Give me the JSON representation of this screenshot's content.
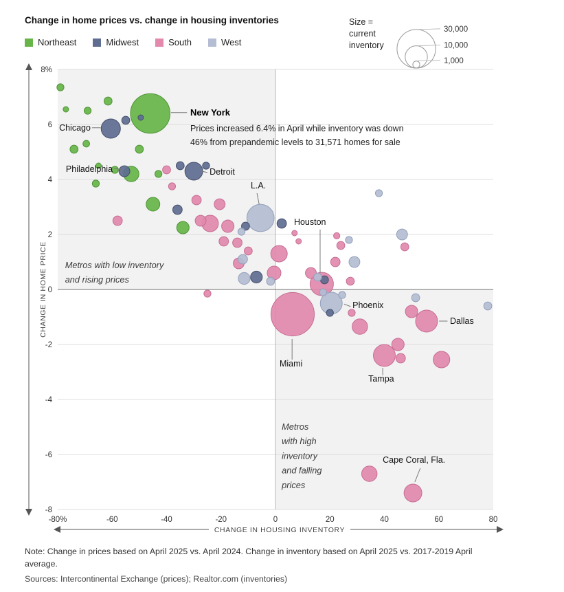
{
  "header": {
    "legend": [
      {
        "label": "Northeast",
        "color": "#67b549"
      },
      {
        "label": "Midwest",
        "color": "#5e6d90"
      },
      {
        "label": "South",
        "color": "#e289ad"
      },
      {
        "label": "West",
        "color": "#b4bdd3"
      }
    ],
    "size_legend": {
      "label_lines": [
        "Size =",
        "current",
        "inventory"
      ],
      "items": [
        {
          "value": 30000,
          "label": "30,000"
        },
        {
          "value": 10000,
          "label": "10,000"
        },
        {
          "value": 1000,
          "label": "1,000"
        }
      ]
    }
  },
  "chart_data": {
    "type": "scatter",
    "title": "Change in home prices vs. change in housing inventories",
    "x_label": "CHANGE IN HOUSING INVENTORY",
    "y_label": "CHANGE IN HOME PRICE",
    "x_range": [
      -80,
      80
    ],
    "y_range": [
      -8,
      8
    ],
    "x_ticks": [
      {
        "v": -80,
        "label": "-80%"
      },
      {
        "v": -60,
        "label": "-60"
      },
      {
        "v": -40,
        "label": "-40"
      },
      {
        "v": -20,
        "label": "-20"
      },
      {
        "v": 0,
        "label": "0"
      },
      {
        "v": 20,
        "label": "20"
      },
      {
        "v": 40,
        "label": "40"
      },
      {
        "v": 60,
        "label": "60"
      },
      {
        "v": 80,
        "label": "80"
      }
    ],
    "y_ticks": [
      {
        "v": 8,
        "label": "8%"
      },
      {
        "v": 6,
        "label": "6"
      },
      {
        "v": 4,
        "label": "4"
      },
      {
        "v": 2,
        "label": "2"
      },
      {
        "v": 0,
        "label": "0"
      },
      {
        "v": -2,
        "label": "-2"
      },
      {
        "v": -4,
        "label": "-4"
      },
      {
        "v": -6,
        "label": "-6"
      },
      {
        "v": -8,
        "label": "-8"
      }
    ],
    "size_note": "bubble area proportional to current inventory; r_px = 0.162*sqrt(inventory)",
    "region_colors": {
      "Northeast": {
        "fill": "#67b549",
        "stroke": "#4d9334"
      },
      "Midwest": {
        "fill": "#5e6d90",
        "stroke": "#454f6b"
      },
      "South": {
        "fill": "#e289ad",
        "stroke": "#c66d92"
      },
      "West": {
        "fill": "#b4bdd3",
        "stroke": "#93a0bc"
      }
    },
    "points": [
      {
        "x": -79,
        "y": 7.35,
        "inv": 1000,
        "region": "Northeast"
      },
      {
        "x": -77,
        "y": 6.55,
        "inv": 600,
        "region": "Northeast"
      },
      {
        "x": -69,
        "y": 6.5,
        "inv": 1000,
        "region": "Northeast"
      },
      {
        "x": -61.5,
        "y": 6.85,
        "inv": 1300,
        "region": "Northeast"
      },
      {
        "x": -46,
        "y": 6.4,
        "inv": 31571,
        "region": "Northeast",
        "city": "New York"
      },
      {
        "x": -74,
        "y": 5.1,
        "inv": 1300,
        "region": "Northeast"
      },
      {
        "x": -69.5,
        "y": 5.3,
        "inv": 900,
        "region": "Northeast"
      },
      {
        "x": -50,
        "y": 5.1,
        "inv": 1300,
        "region": "Northeast"
      },
      {
        "x": -53,
        "y": 4.2,
        "inv": 4800,
        "region": "Northeast",
        "city": "Philadelphia"
      },
      {
        "x": -59,
        "y": 4.35,
        "inv": 1000,
        "region": "Northeast"
      },
      {
        "x": -65,
        "y": 4.5,
        "inv": 600,
        "region": "Northeast"
      },
      {
        "x": -43,
        "y": 4.2,
        "inv": 1000,
        "region": "Northeast"
      },
      {
        "x": -66,
        "y": 3.85,
        "inv": 1000,
        "region": "Northeast"
      },
      {
        "x": -45,
        "y": 3.1,
        "inv": 3800,
        "region": "Northeast"
      },
      {
        "x": -34,
        "y": 2.25,
        "inv": 3100,
        "region": "Northeast"
      },
      {
        "x": -60.5,
        "y": 5.85,
        "inv": 7500,
        "region": "Midwest",
        "city": "Chicago"
      },
      {
        "x": -55,
        "y": 6.15,
        "inv": 1300,
        "region": "Midwest"
      },
      {
        "x": -49.5,
        "y": 6.25,
        "inv": 600,
        "region": "Midwest"
      },
      {
        "x": -55.5,
        "y": 4.3,
        "inv": 2400,
        "region": "Midwest"
      },
      {
        "x": -30,
        "y": 4.3,
        "inv": 6400,
        "region": "Midwest",
        "city": "Detroit"
      },
      {
        "x": -35,
        "y": 4.5,
        "inv": 1300,
        "region": "Midwest"
      },
      {
        "x": -25.5,
        "y": 4.5,
        "inv": 1000,
        "region": "Midwest"
      },
      {
        "x": -36,
        "y": 2.9,
        "inv": 1800,
        "region": "Midwest"
      },
      {
        "x": 2.3,
        "y": 2.4,
        "inv": 1800,
        "region": "Midwest"
      },
      {
        "x": -11,
        "y": 2.3,
        "inv": 1300,
        "region": "Midwest"
      },
      {
        "x": -7,
        "y": 0.45,
        "inv": 2800,
        "region": "Midwest"
      },
      {
        "x": 18,
        "y": 0.35,
        "inv": 1300,
        "region": "Midwest"
      },
      {
        "x": 20,
        "y": -0.85,
        "inv": 1000,
        "region": "Midwest"
      },
      {
        "x": -58,
        "y": 2.5,
        "inv": 1800,
        "region": "South"
      },
      {
        "x": -40,
        "y": 4.35,
        "inv": 1300,
        "region": "South"
      },
      {
        "x": -38,
        "y": 3.75,
        "inv": 1000,
        "region": "South"
      },
      {
        "x": -29,
        "y": 3.25,
        "inv": 1800,
        "region": "South"
      },
      {
        "x": -27.5,
        "y": 2.5,
        "inv": 2400,
        "region": "South"
      },
      {
        "x": -24,
        "y": 2.4,
        "inv": 5500,
        "region": "South"
      },
      {
        "x": -20.5,
        "y": 3.1,
        "inv": 2400,
        "region": "South"
      },
      {
        "x": -17.5,
        "y": 2.3,
        "inv": 3100,
        "region": "South"
      },
      {
        "x": -19,
        "y": 1.75,
        "inv": 1800,
        "region": "South"
      },
      {
        "x": -14,
        "y": 1.7,
        "inv": 1800,
        "region": "South"
      },
      {
        "x": -25,
        "y": -0.15,
        "inv": 1000,
        "region": "South"
      },
      {
        "x": -13.5,
        "y": 0.95,
        "inv": 2400,
        "region": "South"
      },
      {
        "x": -10,
        "y": 1.4,
        "inv": 1300,
        "region": "South"
      },
      {
        "x": 1.3,
        "y": 1.3,
        "inv": 5500,
        "region": "South"
      },
      {
        "x": -0.5,
        "y": 0.6,
        "inv": 3800,
        "region": "South"
      },
      {
        "x": 6.3,
        "y": -0.9,
        "inv": 38000,
        "region": "South",
        "city": "Miami"
      },
      {
        "x": 7,
        "y": 2.05,
        "inv": 600,
        "region": "South"
      },
      {
        "x": 8.5,
        "y": 1.75,
        "inv": 600,
        "region": "South"
      },
      {
        "x": 17,
        "y": 0.2,
        "inv": 11000,
        "region": "South",
        "city": "Houston"
      },
      {
        "x": 13,
        "y": 0.6,
        "inv": 2400,
        "region": "South"
      },
      {
        "x": 22,
        "y": 1.0,
        "inv": 1800,
        "region": "South"
      },
      {
        "x": 24,
        "y": 1.6,
        "inv": 1300,
        "region": "South"
      },
      {
        "x": 22.5,
        "y": 1.95,
        "inv": 800,
        "region": "South"
      },
      {
        "x": 27.5,
        "y": 0.3,
        "inv": 1300,
        "region": "South"
      },
      {
        "x": 31,
        "y": -1.35,
        "inv": 4800,
        "region": "South"
      },
      {
        "x": 40,
        "y": -2.4,
        "inv": 9700,
        "region": "South",
        "city": "Tampa"
      },
      {
        "x": 45,
        "y": -2.0,
        "inv": 3100,
        "region": "South"
      },
      {
        "x": 46,
        "y": -2.5,
        "inv": 1800,
        "region": "South"
      },
      {
        "x": 55.5,
        "y": -1.15,
        "inv": 9700,
        "region": "South",
        "city": "Dallas"
      },
      {
        "x": 50,
        "y": -0.8,
        "inv": 3100,
        "region": "South"
      },
      {
        "x": 61,
        "y": -2.55,
        "inv": 5500,
        "region": "South"
      },
      {
        "x": 47.5,
        "y": 1.55,
        "inv": 1300,
        "region": "South"
      },
      {
        "x": 50.5,
        "y": -7.4,
        "inv": 6400,
        "region": "South",
        "city": "Cape Coral, Fla."
      },
      {
        "x": 34.5,
        "y": -6.7,
        "inv": 4800,
        "region": "South"
      },
      {
        "x": 28,
        "y": -0.85,
        "inv": 1000,
        "region": "South"
      },
      {
        "x": -5.5,
        "y": 2.6,
        "inv": 15000,
        "region": "West",
        "city": "L.A."
      },
      {
        "x": -12,
        "y": 1.1,
        "inv": 1800,
        "region": "West"
      },
      {
        "x": -11.5,
        "y": 0.4,
        "inv": 2800,
        "region": "West"
      },
      {
        "x": -1.8,
        "y": 0.3,
        "inv": 1300,
        "region": "West"
      },
      {
        "x": 15.5,
        "y": 0.45,
        "inv": 1300,
        "region": "West"
      },
      {
        "x": 17.5,
        "y": -0.1,
        "inv": 1000,
        "region": "West"
      },
      {
        "x": 20.5,
        "y": -0.5,
        "inv": 9700,
        "region": "West",
        "city": "Phoenix"
      },
      {
        "x": 24.5,
        "y": -0.2,
        "inv": 1000,
        "region": "West"
      },
      {
        "x": 29,
        "y": 1.0,
        "inv": 2400,
        "region": "West"
      },
      {
        "x": 27,
        "y": 1.8,
        "inv": 1000,
        "region": "West"
      },
      {
        "x": 38,
        "y": 3.5,
        "inv": 1000,
        "region": "West"
      },
      {
        "x": 46.5,
        "y": 2.0,
        "inv": 2400,
        "region": "West"
      },
      {
        "x": 51.5,
        "y": -0.3,
        "inv": 1300,
        "region": "West"
      },
      {
        "x": 78,
        "y": -0.6,
        "inv": 1300,
        "region": "West"
      },
      {
        "x": -12.5,
        "y": 2.1,
        "inv": 1000,
        "region": "West"
      }
    ],
    "annotations": [
      {
        "text": "Chicago",
        "x": -67.9,
        "y": 5.78,
        "anchor": "end",
        "line": [
          -67.4,
          5.88,
          -64.2,
          5.88
        ]
      },
      {
        "text": "New York",
        "x": -31.3,
        "y": 6.33,
        "anchor": "start",
        "bold": true,
        "line": [
          -38.4,
          6.43,
          -32.5,
          6.43
        ]
      },
      {
        "text": "Philadelphia",
        "x": -59.8,
        "y": 4.28,
        "anchor": "end",
        "line": [
          -59.3,
          4.4,
          -56.5,
          4.36
        ]
      },
      {
        "text": "Detroit",
        "x": -24.2,
        "y": 4.18,
        "anchor": "start",
        "line": [
          -27,
          4.3,
          -25,
          4.25
        ]
      },
      {
        "text": "L.A.",
        "x": -9.1,
        "y": 3.68,
        "anchor": "start",
        "line": [
          -6.8,
          3.5,
          -6,
          3.1
        ]
      },
      {
        "text": "Houston",
        "x": 6.8,
        "y": 2.35,
        "anchor": "start",
        "line": [
          16.4,
          2.18,
          16.4,
          0.6
        ]
      },
      {
        "text": "Phoenix",
        "x": 28.3,
        "y": -0.68,
        "anchor": "start",
        "line": [
          25.2,
          -0.53,
          27.6,
          -0.62
        ]
      },
      {
        "text": "Miami",
        "x": 1.5,
        "y": -2.8,
        "anchor": "start",
        "line": [
          6.1,
          -1.8,
          6.1,
          -2.55
        ]
      },
      {
        "text": "Dallas",
        "x": 64.1,
        "y": -1.25,
        "anchor": "start",
        "line": [
          60.1,
          -1.15,
          63.2,
          -1.15
        ]
      },
      {
        "text": "Tampa",
        "x": 34.1,
        "y": -3.35,
        "anchor": "start",
        "line": [
          39.4,
          -2.85,
          39.4,
          -3.12
        ]
      },
      {
        "text": "Cape Coral, Fla.",
        "x": 39.4,
        "y": -6.3,
        "anchor": "start",
        "line": [
          53.2,
          -6.5,
          51.2,
          -7.0
        ]
      }
    ],
    "callout_lines": [
      {
        "text": "Prices increased 6.4% in April while inventory was down",
        "x": -31.3,
        "y": 5.75
      },
      {
        "text": "46% from prepandemic levels to 31,571 homes for sale",
        "x": -31.3,
        "y": 5.25
      }
    ],
    "quadrant_labels": [
      {
        "lines": [
          "Metros with low inventory",
          "and rising prices"
        ],
        "x": -77.3,
        "y": 0.78,
        "step": 0.53
      },
      {
        "lines": [
          "Metros",
          "with high",
          "inventory",
          "and falling",
          "prices"
        ],
        "x": 2.3,
        "y": -5.1,
        "step": 0.53
      }
    ]
  },
  "footer": {
    "note_lines": [
      "Note: Change in prices based on April 2025 vs. April 2024. Change in inventory based on April 2025 vs. 2017-2019 April",
      "average."
    ],
    "sources": "Sources: Intercontinental Exchange (prices); Realtor.com (inventories)"
  }
}
